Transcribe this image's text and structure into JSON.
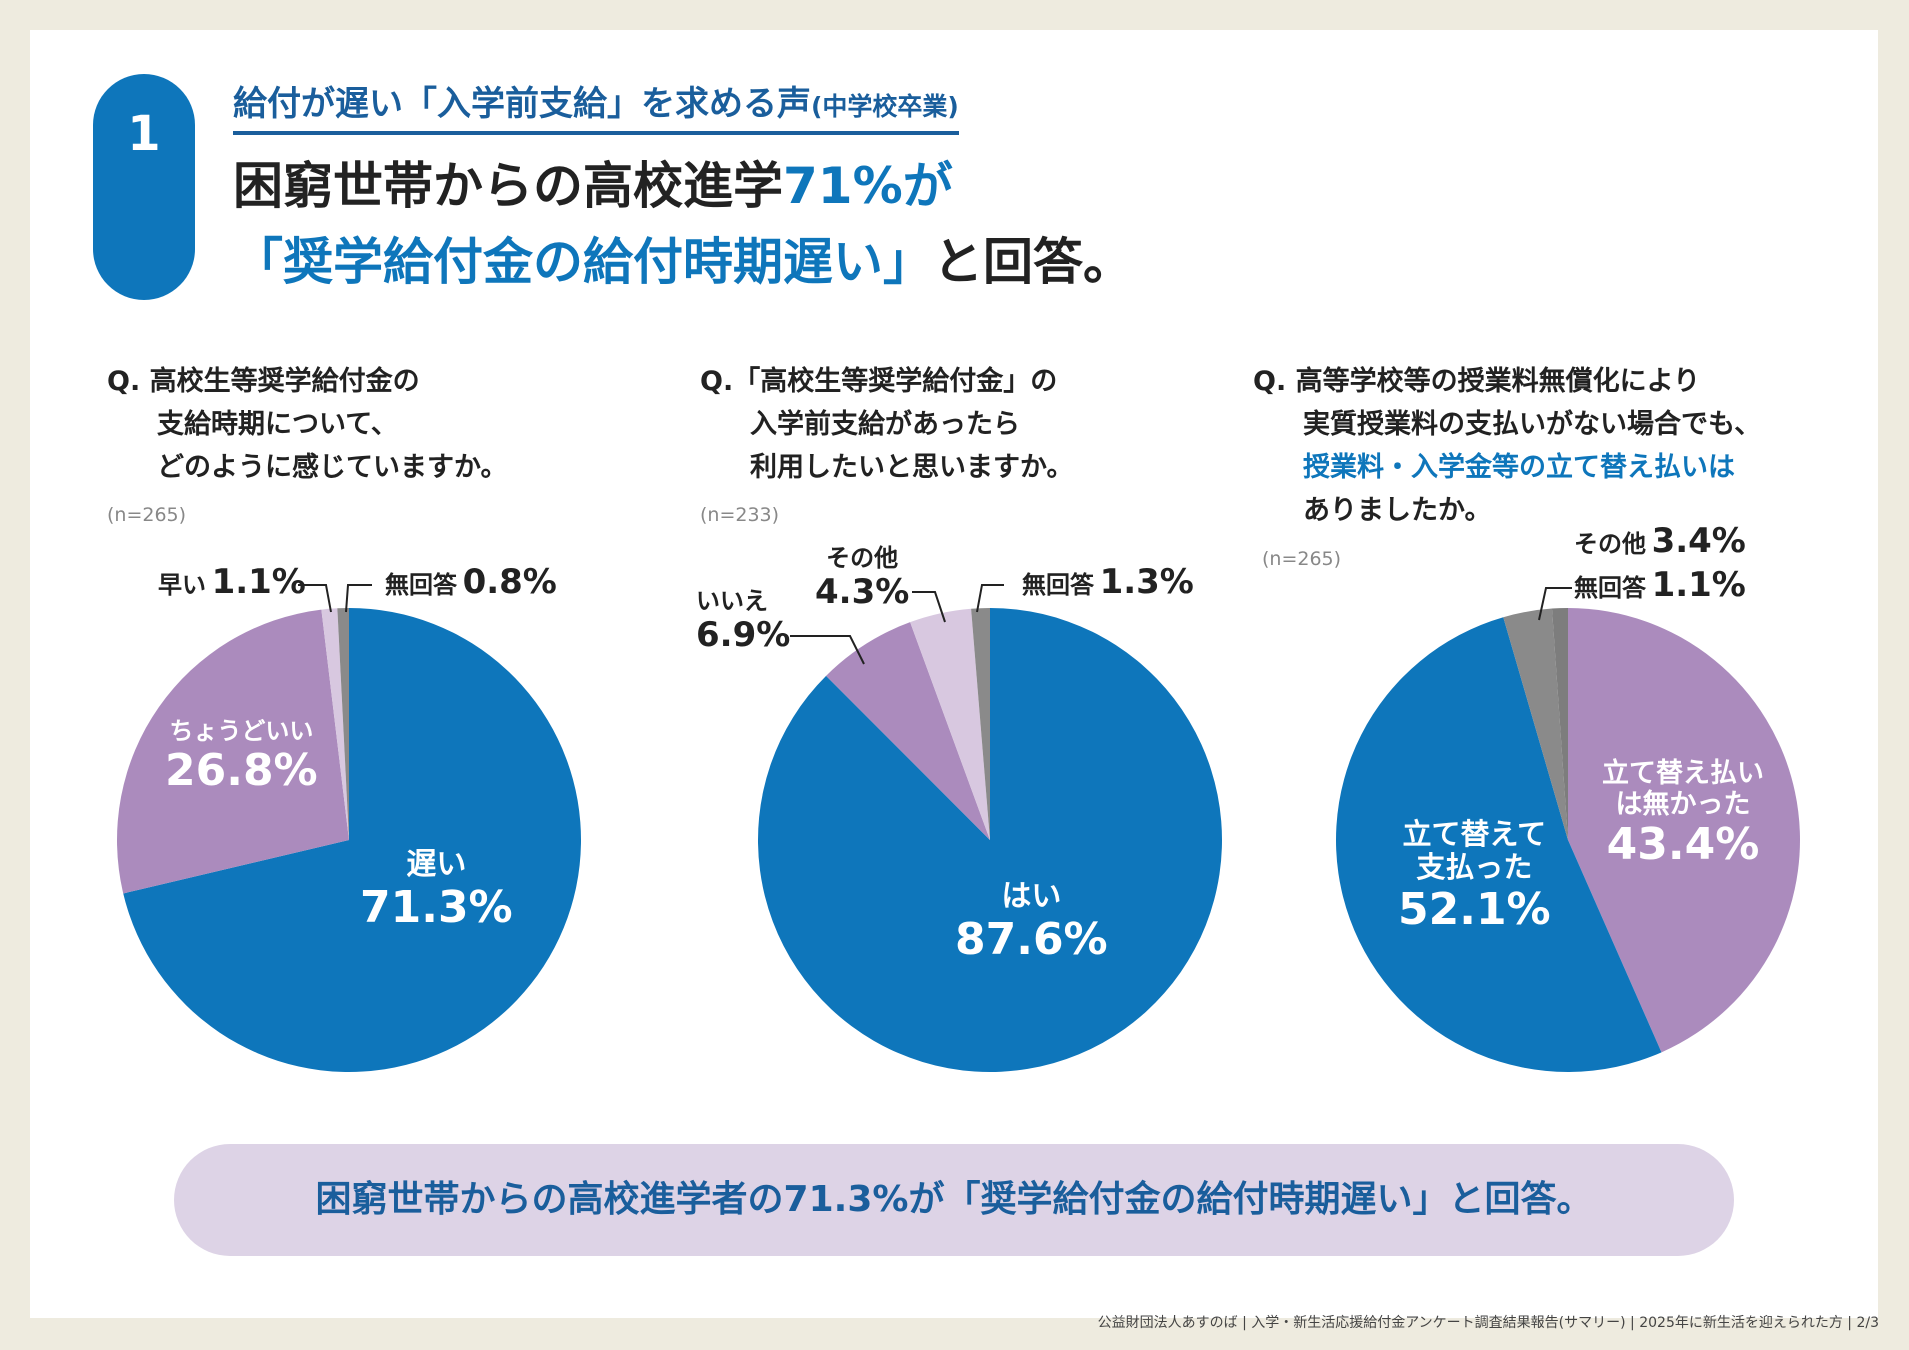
{
  "header": {
    "number": "1",
    "subtitle": "給付が遅い「入学前支給」を求める声",
    "subtitle_note": "(中学校卒業)",
    "title_1a": "困窮世帯からの高校進学",
    "title_1b": "71%",
    "title_1c": "が",
    "title_2a": "「奨学給付金の給付時期遅い」",
    "title_2b": "と回答。"
  },
  "questions": [
    {
      "lines": [
        "Q. 高校生等奨学給付金の",
        "支給時期について、",
        "どのように感じていますか。"
      ],
      "n": "(n=265)"
    },
    {
      "lines": [
        "Q.「高校生等奨学給付金」の",
        "入学前支給があったら",
        "利用したいと思いますか。"
      ],
      "n": "(n=233)"
    },
    {
      "lines": [
        "Q. 高等学校等の授業料無償化により",
        "実質授業料の支払いがない場合でも、",
        "授業料・入学金等の立て替え払いは",
        "ありましたか。"
      ],
      "n": "(n=265)"
    }
  ],
  "chart_data": [
    {
      "type": "pie",
      "slices": [
        {
          "label": "遅い",
          "value": 71.3,
          "display": "71.3%",
          "color": "#0e76bb"
        },
        {
          "label": "ちょうどいい",
          "value": 26.8,
          "display": "26.8%",
          "color": "#ab8bbd"
        },
        {
          "label": "早い",
          "value": 1.1,
          "display": "1.1%",
          "color": "#d8c8e0"
        },
        {
          "label": "無回答",
          "value": 0.8,
          "display": "0.8%",
          "color": "#8a8a8a"
        }
      ]
    },
    {
      "type": "pie",
      "slices": [
        {
          "label": "はい",
          "value": 87.6,
          "display": "87.6%",
          "color": "#0e76bb"
        },
        {
          "label": "いいえ",
          "value": 6.9,
          "display": "6.9%",
          "color": "#ab8bbd"
        },
        {
          "label": "その他",
          "value": 4.3,
          "display": "4.3%",
          "color": "#d8c8e0"
        },
        {
          "label": "無回答",
          "value": 1.3,
          "display": "1.3%",
          "color": "#8a8a8a"
        }
      ]
    },
    {
      "type": "pie",
      "slices": [
        {
          "label": "立て替え払いは無かった",
          "value": 43.4,
          "display": "43.4%",
          "color": "#ab8bbd"
        },
        {
          "label": "立て替えて支払った",
          "value": 52.1,
          "display": "52.1%",
          "color": "#0e76bb"
        },
        {
          "label": "その他",
          "value": 3.4,
          "display": "3.4%",
          "color": "#8a8a8a"
        },
        {
          "label": "無回答",
          "value": 1.1,
          "display": "1.1%",
          "color": "#7d7d7d"
        }
      ]
    }
  ],
  "label_lines": {
    "c3_s0": [
      "立て替え払い",
      "は無かった"
    ],
    "c3_s1": [
      "立て替えて",
      "支払った"
    ]
  },
  "banner": "困窮世帯からの高校進学者の71.3%が「奨学給付金の給付時期遅い」と回答。",
  "footer": "公益財団法人あすのば | 入学・新生活応援給付金アンケート調査結果報告(サマリー) | 2025年に新生活を迎えられた方 | 2/3"
}
